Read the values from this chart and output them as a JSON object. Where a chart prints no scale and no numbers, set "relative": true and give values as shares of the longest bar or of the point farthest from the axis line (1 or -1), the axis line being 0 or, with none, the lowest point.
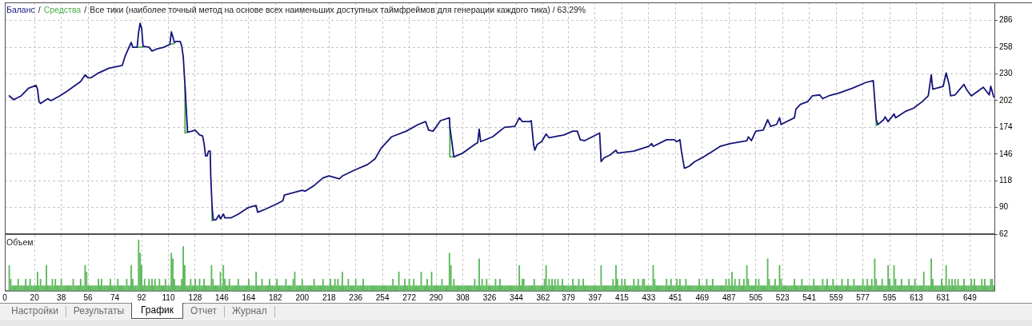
{
  "chart_data": [
    {
      "type": "line",
      "title": "Все тики (наиболее точный метод на основе всех наименьших доступных таймфреймов для генерации каждого тика) / 63.29%",
      "annotations": [
        "/",
        "/"
      ],
      "legend": "top left",
      "tick_labels": "y",
      "grid": true,
      "xlim": [
        0,
        666
      ],
      "xticks": [
        0,
        20,
        38,
        56,
        74,
        92,
        110,
        128,
        146,
        164,
        182,
        200,
        218,
        236,
        254,
        272,
        290,
        308,
        326,
        344,
        362,
        379,
        397,
        415,
        433,
        451,
        469,
        487,
        505,
        523,
        541,
        559,
        577,
        595,
        613,
        631,
        649
      ],
      "ylim": [
        62,
        305
      ],
      "yticks": [
        62,
        90,
        118,
        146,
        174,
        202,
        230,
        258,
        286
      ],
      "series": [
        {
          "name": "Баланс",
          "color": "#14147a",
          "x": [
            3,
            6,
            11,
            16,
            21,
            22,
            23,
            24,
            29,
            31,
            37,
            42,
            51,
            54,
            56,
            58,
            63,
            70,
            79,
            81,
            83,
            85,
            86,
            89,
            90,
            91,
            92,
            93,
            97,
            99,
            102,
            107,
            111,
            112,
            113,
            114,
            115,
            118,
            119,
            120,
            121.2,
            122.9,
            126,
            128,
            131,
            133,
            134,
            135,
            136,
            137,
            138.1,
            138.5,
            139.4,
            140.2,
            142,
            144,
            145,
            147,
            148,
            152,
            157,
            164,
            169,
            170,
            175,
            182,
            187,
            188,
            193,
            200,
            202,
            208,
            214,
            218,
            225,
            227,
            235,
            244,
            249,
            253,
            260,
            270,
            278,
            283,
            285,
            288,
            293,
            299,
            299.3,
            302,
            308,
            316,
            318,
            319,
            320,
            328,
            336,
            343,
            346,
            348,
            353,
            354,
            355.6,
            356.4,
            358,
            361,
            364,
            366,
            376,
            382,
            385,
            387,
            390,
            400,
            401,
            403,
            407,
            411,
            412,
            423,
            433,
            435,
            436,
            445,
            450,
            452,
            454,
            455,
            457,
            460,
            464,
            470,
            476,
            481,
            488,
            499,
            500,
            502,
            505,
            510,
            513,
            515,
            519,
            521,
            522,
            531,
            532,
            535,
            540,
            543,
            548,
            550,
            554,
            561,
            570,
            579,
            584,
            586,
            587,
            588,
            591,
            592,
            594,
            598,
            599,
            606,
            611,
            617,
            621,
            623,
            624,
            631,
            633,
            635,
            636,
            639,
            645,
            647,
            650,
            658,
            662,
            663,
            665
          ],
          "values": [
            207,
            203,
            207,
            215,
            218,
            214,
            201,
            199,
            204,
            202,
            207,
            212,
            222,
            229,
            226,
            226,
            231,
            236,
            239,
            249,
            256,
            263,
            258,
            258,
            274,
            283,
            278,
            259,
            258,
            254,
            256,
            258,
            261,
            274,
            269,
            263,
            264,
            264,
            259,
            248,
            217,
            169,
            170,
            171,
            166,
            165,
            157,
            144,
            144,
            149,
            149,
            123,
            90,
            77,
            77,
            82,
            78,
            83,
            79,
            79,
            83,
            90,
            92,
            85,
            88,
            93,
            97,
            103,
            105,
            108,
            107,
            113,
            121,
            123,
            120,
            123,
            129,
            135,
            141,
            152,
            164,
            170,
            177,
            180,
            171,
            170,
            181,
            184,
            174,
            143,
            147,
            156,
            158,
            172,
            159,
            164,
            174,
            175,
            184,
            180,
            180,
            181,
            156,
            150,
            156,
            159,
            167,
            163,
            166,
            170,
            170,
            161,
            160,
            168,
            138,
            142,
            145,
            150,
            147,
            149,
            154,
            157,
            154,
            161,
            161,
            159,
            161,
            149,
            131,
            133,
            138,
            143,
            149,
            154,
            157,
            160,
            164,
            160,
            170,
            171,
            182,
            175,
            177,
            184,
            177,
            184,
            193,
            198,
            201,
            207,
            208,
            204,
            207,
            210,
            215,
            221,
            223,
            182,
            177,
            178,
            182,
            185,
            180,
            188,
            184,
            191,
            194,
            201,
            207,
            229,
            214,
            217,
            231,
            219,
            207,
            208,
            219,
            213,
            207,
            216,
            208,
            217,
            206
          ]
        },
        {
          "name": "Средства",
          "color": "#4cae4c",
          "x": [
            89,
            93,
            94,
            111,
            114,
            115,
            121.2,
            121.2,
            123,
            124,
            139.4,
            139.4,
            140.2,
            141,
            299.3,
            299.3,
            302,
            303,
            586,
            586,
            587
          ],
          "values": [
            258,
            258,
            null,
            261,
            262,
            null,
            217,
            168,
            169,
            null,
            90,
            76,
            77,
            null,
            174,
            143,
            143,
            null,
            182,
            176,
            177
          ]
        }
      ]
    },
    {
      "type": "bar",
      "title": "Объем",
      "relative": true,
      "color": "#5cb85c",
      "grid": "x",
      "xlim": [
        0,
        666
      ],
      "xticks": [
        0,
        20,
        38,
        56,
        74,
        92,
        110,
        128,
        146,
        164,
        182,
        200,
        218,
        236,
        254,
        272,
        290,
        308,
        326,
        344,
        362,
        379,
        397,
        415,
        433,
        451,
        469,
        487,
        505,
        523,
        541,
        559,
        577,
        595,
        613,
        631,
        649
      ],
      "x": [
        3,
        4,
        5,
        6,
        7,
        8,
        9,
        10,
        11,
        12,
        13,
        14,
        15,
        16,
        17,
        18,
        19,
        20,
        21,
        22,
        23,
        24,
        25,
        26,
        27,
        28,
        29,
        30,
        31,
        32,
        33,
        34,
        35,
        36,
        37,
        38,
        39,
        40,
        41,
        42,
        43,
        44,
        45,
        46,
        47,
        48,
        49,
        50,
        51,
        52,
        53,
        54,
        55,
        56,
        57,
        58,
        59,
        60,
        61,
        62,
        63,
        64,
        65,
        66,
        67,
        68,
        69,
        70,
        71,
        72,
        73,
        74,
        75,
        76,
        77,
        78,
        79,
        80,
        81,
        82,
        83,
        84,
        85,
        86,
        87,
        88,
        89,
        90,
        91,
        92,
        93,
        94,
        95,
        96,
        97,
        98,
        99,
        100,
        101,
        102,
        103,
        104,
        105,
        106,
        107,
        108,
        109,
        110,
        111,
        112,
        113,
        114,
        115,
        116,
        117,
        118,
        119,
        120,
        121,
        122,
        123,
        124,
        125,
        126,
        127,
        128,
        129,
        130,
        131,
        132,
        133,
        134,
        135,
        136,
        137,
        138,
        139,
        140,
        141,
        142,
        143,
        144,
        145,
        146,
        147,
        148,
        149,
        150,
        151,
        152,
        153,
        154,
        155,
        156,
        157,
        158,
        159,
        160,
        161,
        162,
        163,
        164,
        165,
        166,
        167,
        168,
        169,
        170,
        171,
        172,
        173,
        174,
        175,
        176,
        177,
        178,
        179,
        180,
        181,
        182,
        183,
        184,
        185,
        186,
        187,
        188,
        189,
        190,
        191,
        192,
        193,
        194,
        195,
        196,
        197,
        198,
        199,
        200,
        201,
        202,
        203,
        204,
        205,
        206,
        207,
        208,
        209,
        210,
        211,
        212,
        213,
        214,
        215,
        216,
        217,
        218,
        219,
        220,
        221,
        222,
        223,
        224,
        225,
        226,
        227,
        228,
        229,
        230,
        231,
        232,
        233,
        234,
        235,
        236,
        237,
        238,
        239,
        240,
        241,
        242,
        243,
        244,
        245,
        246,
        247,
        248,
        249,
        250,
        251,
        252,
        253,
        254,
        255,
        256,
        257,
        258,
        259,
        260,
        261,
        262,
        263,
        264,
        265,
        266,
        267,
        268,
        269,
        270,
        271,
        272,
        273,
        274,
        275,
        276,
        277,
        278,
        279,
        280,
        281,
        282,
        283,
        284,
        285,
        286,
        287,
        288,
        289,
        290,
        291,
        292,
        293,
        294,
        295,
        296,
        297,
        298,
        299,
        300,
        301,
        302,
        303,
        304,
        305,
        306,
        307,
        308,
        309,
        310,
        311,
        312,
        313,
        314,
        315,
        316,
        317,
        318,
        319,
        320,
        321,
        322,
        323,
        324,
        325,
        326,
        327,
        328,
        329,
        330,
        331,
        332,
        333,
        334,
        335,
        336,
        337,
        338,
        339,
        340,
        341,
        342,
        343,
        344,
        345,
        346,
        347,
        348,
        349,
        350,
        351,
        352,
        353,
        354,
        355,
        356,
        357,
        358,
        359,
        360,
        361,
        362,
        363,
        364,
        365,
        366,
        367,
        368,
        369,
        370,
        371,
        372,
        373,
        374,
        375,
        376,
        377,
        378,
        379,
        380,
        381,
        382,
        383,
        384,
        385,
        386,
        387,
        388,
        389,
        390,
        391,
        392,
        393,
        394,
        395,
        396,
        397,
        398,
        399,
        400,
        401,
        402,
        403,
        404,
        405,
        406,
        407,
        408,
        409,
        410,
        411,
        412,
        413,
        414,
        415,
        416,
        417,
        418,
        419,
        420,
        421,
        422,
        423,
        424,
        425,
        426,
        427,
        428,
        429,
        430,
        431,
        432,
        433,
        434,
        435,
        436,
        437,
        438,
        439,
        440,
        441,
        442,
        443,
        444,
        445,
        446,
        447,
        448,
        449,
        450,
        451,
        452,
        453,
        454,
        455,
        456,
        457,
        458,
        459,
        460,
        461,
        462,
        463,
        464,
        465,
        466,
        467,
        468,
        469,
        470,
        471,
        472,
        473,
        474,
        475,
        476,
        477,
        478,
        479,
        480,
        481,
        482,
        483,
        484,
        485,
        486,
        487,
        488,
        489,
        490,
        491,
        492,
        493,
        494,
        495,
        496,
        497,
        498,
        499,
        500,
        501,
        502,
        503,
        504,
        505,
        506,
        507,
        508,
        509,
        510,
        511,
        512,
        513,
        514,
        515,
        516,
        517,
        518,
        519,
        520,
        521,
        522,
        523,
        524,
        525,
        526,
        527,
        528,
        529,
        530,
        531,
        532,
        533,
        534,
        535,
        536,
        537,
        538,
        539,
        540,
        541,
        542,
        543,
        544,
        545,
        546,
        547,
        548,
        549,
        550,
        551,
        552,
        553,
        554,
        555,
        556,
        557,
        558,
        559,
        560,
        561,
        562,
        563,
        564,
        565,
        566,
        567,
        568,
        569,
        570,
        571,
        572,
        573,
        574,
        575,
        576,
        577,
        578,
        579,
        580,
        581,
        582,
        583,
        584,
        585,
        586,
        587,
        588,
        589,
        590,
        591,
        592,
        593,
        594,
        595,
        596,
        597,
        598,
        599,
        600,
        601,
        602,
        603,
        604,
        605,
        606,
        607,
        608,
        609,
        610,
        611,
        612,
        613,
        614,
        615,
        616,
        617,
        618,
        619,
        620,
        621,
        622,
        623,
        624,
        625,
        626,
        627,
        628,
        629,
        630,
        631,
        632,
        633,
        634,
        635,
        636,
        637,
        638,
        639,
        640,
        641,
        642,
        643,
        644,
        645,
        646,
        647,
        648,
        649,
        650,
        651,
        652,
        653,
        654,
        655,
        656,
        657,
        658,
        659,
        660,
        661,
        662,
        663,
        664,
        665
      ],
      "values": [
        0.5,
        0.23,
        0.1,
        0.1,
        0.1,
        0.1,
        0.23,
        0.1,
        0.1,
        0.1,
        0.1,
        0.23,
        0.1,
        0.1,
        0.23,
        0.1,
        0.1,
        0.1,
        0.1,
        0.37,
        0.1,
        0.23,
        0.1,
        0.1,
        0.1,
        0.5,
        0.1,
        0.1,
        0.1,
        0.23,
        0.1,
        0.23,
        0.1,
        0.1,
        0.1,
        0.23,
        0.1,
        0.1,
        0.1,
        0.1,
        0.1,
        0.1,
        0.1,
        0.23,
        0.1,
        0.1,
        0.1,
        0.1,
        0.23,
        0.1,
        0.1,
        0.5,
        0.37,
        0.1,
        0.1,
        0.1,
        0.1,
        0.1,
        0.1,
        0.1,
        0.23,
        0.1,
        0.23,
        0.1,
        0.1,
        0.1,
        0.1,
        0.1,
        0.23,
        0.1,
        0.1,
        0.1,
        0.1,
        0.23,
        0.1,
        0.1,
        0.1,
        0.1,
        0.1,
        0.23,
        0.1,
        0.1,
        0.5,
        0.23,
        0.1,
        0.1,
        0.1,
        1,
        0.74,
        0.5,
        0.1,
        0.23,
        0.1,
        0.1,
        0.23,
        0.1,
        0.23,
        0.1,
        0.23,
        0.1,
        0.1,
        0.23,
        0.1,
        0.1,
        0.1,
        0.23,
        0.1,
        0.1,
        0.1,
        0.74,
        0.63,
        0.23,
        0.1,
        0.1,
        0.1,
        0.1,
        0.23,
        0.87,
        0.5,
        0.1,
        0.1,
        0.1,
        0.23,
        0.1,
        0.1,
        0.23,
        0.1,
        0.1,
        0.23,
        0.1,
        0.1,
        0.23,
        0.1,
        0.1,
        0.1,
        0.1,
        0.5,
        0.23,
        0.1,
        0.1,
        0.1,
        0.1,
        0.37,
        0.1,
        0.5,
        0.23,
        0.1,
        0.1,
        0.23,
        0.1,
        0.1,
        0.1,
        0.1,
        0.1,
        0.23,
        0.1,
        0.1,
        0.1,
        0.1,
        0.1,
        0.1,
        0.23,
        0.1,
        0.1,
        0.1,
        0.1,
        0.37,
        0.1,
        0.1,
        0.1,
        0.23,
        0.1,
        0.1,
        0.1,
        0.1,
        0.23,
        0.1,
        0.1,
        0.1,
        0.1,
        0.23,
        0.1,
        0.1,
        0.1,
        0.1,
        0.1,
        0.23,
        0.1,
        0.1,
        0.1,
        0.1,
        0.23,
        0.37,
        0.1,
        0.1,
        0.1,
        0.1,
        0.23,
        0.1,
        0.1,
        0.1,
        0.1,
        0.1,
        0.1,
        0.1,
        0.23,
        0.1,
        0.1,
        0.1,
        0.1,
        0.1,
        0.23,
        0.1,
        0.1,
        0.1,
        0.1,
        0.23,
        0.1,
        0.1,
        0.23,
        0.1,
        0.23,
        0.1,
        0.1,
        0.37,
        0.1,
        0.1,
        0.1,
        0.23,
        0.1,
        0.1,
        0.1,
        0.1,
        0.23,
        0.1,
        0.1,
        0.1,
        0.1,
        0.23,
        0.1,
        0.1,
        0.1,
        0.1,
        0.1,
        0.1,
        0.1,
        0.1,
        0.1,
        0.1,
        0.1,
        0.1,
        0.1,
        0.1,
        0.1,
        0.1,
        0.1,
        0.1,
        0.1,
        0.23,
        0.1,
        0.1,
        0.1,
        0.37,
        0.1,
        0.1,
        0.1,
        0.23,
        0.1,
        0.1,
        0.23,
        0.1,
        0.1,
        0.23,
        0.1,
        0.1,
        0.1,
        0.1,
        0.37,
        0.1,
        0.1,
        0.1,
        0.23,
        0.1,
        0.1,
        0.37,
        0.1,
        0.1,
        0.1,
        0.1,
        0.1,
        0.1,
        0.23,
        0.1,
        0.1,
        0.1,
        0.1,
        0.74,
        0.5,
        0.1,
        0.23,
        0.1,
        0.1,
        0.1,
        0.1,
        0.1,
        0.1,
        0.1,
        0.1,
        0.1,
        0.1,
        0.1,
        0.1,
        0.1,
        0.23,
        0.1,
        0.1,
        0.63,
        0.1,
        0.23,
        0.1,
        0.1,
        0.23,
        0.1,
        0.1,
        0.1,
        0.1,
        0.1,
        0.23,
        0.1,
        0.1,
        0.23,
        0.1,
        0.1,
        0.1,
        0.1,
        0.1,
        0.1,
        0.1,
        0.1,
        0.1,
        0.1,
        0.1,
        0.1,
        0.5,
        0.1,
        0.23,
        0.23,
        0.1,
        0.1,
        0.1,
        0.1,
        0.1,
        0.1,
        0.23,
        0.1,
        0.1,
        0.1,
        0.1,
        0.1,
        0.1,
        0.23,
        0.5,
        0.1,
        0.23,
        0.1,
        0.23,
        0.1,
        0.23,
        0.1,
        0.23,
        0.1,
        0.1,
        0.23,
        0.1,
        0.1,
        0.1,
        0.1,
        0.1,
        0.1,
        0.23,
        0.1,
        0.1,
        0.1,
        0.23,
        0.1,
        0.1,
        0.23,
        0.1,
        0.1,
        0.1,
        0.1,
        0.1,
        0.1,
        0.1,
        0.1,
        0.1,
        0.1,
        0.1,
        0.5,
        0.1,
        0.1,
        0.1,
        0.1,
        0.1,
        0.1,
        0.1,
        0.23,
        0.1,
        0.5,
        0.23,
        0.1,
        0.1,
        0.23,
        0.1,
        0.23,
        0.1,
        0.1,
        0.1,
        0.1,
        0.1,
        0.23,
        0.1,
        0.1,
        0.23,
        0.1,
        0.1,
        0.23,
        0.23,
        0.1,
        0.1,
        0.1,
        0.1,
        0.1,
        0.5,
        0.23,
        0.1,
        0.1,
        0.1,
        0.1,
        0.1,
        0.1,
        0.1,
        0.23,
        0.1,
        0.1,
        0.23,
        0.1,
        0.1,
        0.1,
        0.23,
        0.1,
        0.23,
        0.1,
        0.1,
        0.1,
        0.23,
        0.1,
        0.1,
        0.1,
        0.1,
        0.1,
        0.1,
        0.1,
        0.1,
        0.23,
        0.1,
        0.1,
        0.1,
        0.1,
        0.23,
        0.1,
        0.1,
        0.1,
        0.23,
        0.1,
        0.1,
        0.1,
        0.1,
        0.1,
        0.1,
        0.1,
        0.1,
        0.23,
        0.1,
        0.23,
        0.1,
        0.37,
        0.1,
        0.23,
        0.1,
        0.1,
        0.23,
        0.1,
        0.1,
        0.23,
        0.1,
        0.5,
        0.23,
        0.1,
        0.1,
        0.1,
        0.1,
        0.23,
        0.1,
        0.23,
        0.1,
        0.1,
        0.1,
        0.1,
        0.1,
        0.63,
        0.23,
        0.1,
        0.1,
        0.1,
        0.23,
        0.1,
        0.1,
        0.5,
        0.23,
        0.1,
        0.1,
        0.1,
        0.1,
        0.1,
        0.1,
        0.1,
        0.1,
        0.23,
        0.1,
        0.1,
        0.1,
        0.1,
        0.23,
        0.1,
        0.1,
        0.1,
        0.1,
        0.1,
        0.1,
        0.1,
        0.23,
        0.1,
        0.1,
        0.1,
        0.1,
        0.1,
        0.23,
        0.1,
        0.1,
        0.23,
        0.1,
        0.1,
        0.1,
        0.23,
        0.1,
        0.1,
        0.1,
        0.1,
        0.1,
        0.23,
        0.1,
        0.1,
        0.1,
        0.23,
        0.1,
        0.1,
        0.1,
        0.23,
        0.1,
        0.1,
        0.1,
        0.1,
        0.1,
        0.23,
        0.1,
        0.1,
        0.23,
        0.1,
        0.1,
        0.23,
        0.1,
        0.63,
        0.23,
        0.1,
        0.1,
        0.1,
        0.23,
        0.1,
        0.1,
        0.1,
        0.5,
        0.23,
        0.1,
        0.1,
        0.5,
        0.23,
        0.1,
        0.1,
        0.1,
        0.23,
        0.1,
        0.1,
        0.1,
        0.1,
        0.23,
        0.1,
        0.1,
        0.1,
        0.23,
        0.1,
        0.1,
        0.1,
        0.1,
        0.1,
        0.37,
        0.1,
        0.1,
        0.1,
        0.1,
        0.63,
        0.23,
        0.1,
        0.1,
        0.1,
        0.1,
        0.1,
        0.23,
        0.1,
        0.1,
        0.5,
        0.1,
        0.23,
        0.1,
        0.23,
        0.1,
        0.23,
        0.1,
        0.23,
        0.1,
        0.1,
        0.1,
        0.23,
        0.1,
        0.1,
        0.1,
        0.1,
        0.23,
        0.1,
        0.23,
        0.1,
        0.1,
        0.1,
        0.1,
        0.23,
        0.1,
        0.23,
        0.1,
        0.1,
        0.1,
        0.23,
        0.23,
        0.1
      ]
    },
    {
      "type": "other",
      "annotations": [
        "Настройки",
        "Результаты",
        "График",
        "Отчет",
        "Журнал"
      ]
    }
  ]
}
